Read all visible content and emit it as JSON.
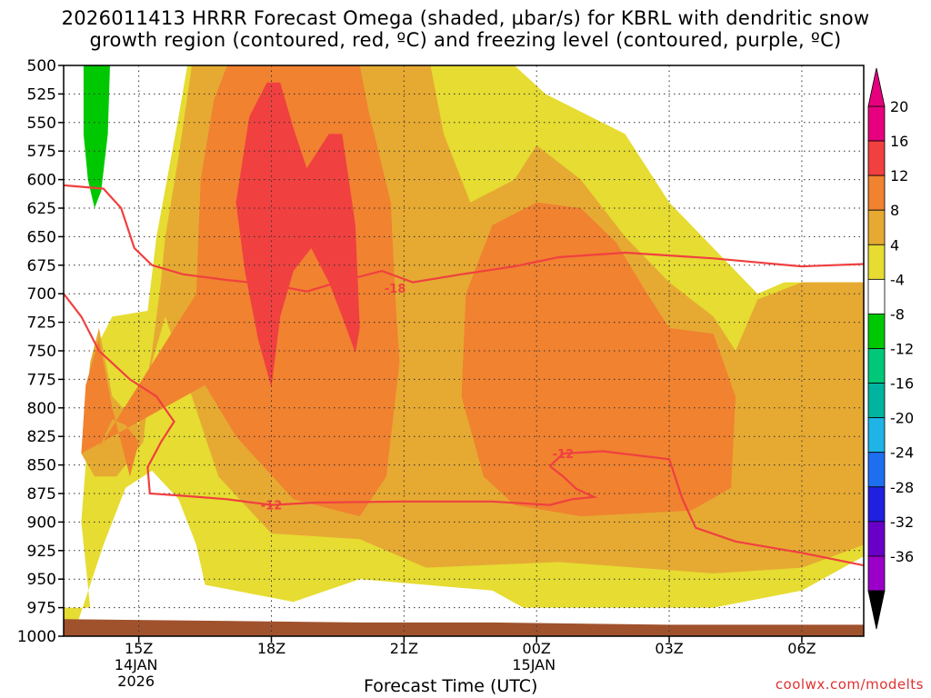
{
  "title_line1": "2026011413 HRRR Forecast Omega (shaded, µbar/s) for KBRL with dendritic snow",
  "title_line2": "growth region (contoured, red, ºC) and freezing level (contoured, purple, ºC)",
  "website": "coolwx.com/modelts",
  "chart_data": {
    "type": "contour-time-height",
    "xlabel": "Forecast Time (UTC)",
    "x_unit": "hours since 2026-01-14 15Z",
    "xlim": [
      -1.7,
      16.4
    ],
    "ylim": [
      500,
      1000
    ],
    "y_ticks": [
      500,
      525,
      550,
      575,
      600,
      625,
      650,
      675,
      700,
      725,
      750,
      775,
      800,
      825,
      850,
      875,
      900,
      925,
      950,
      975,
      1000
    ],
    "x_ticks": [
      {
        "x": 0,
        "label": "15Z",
        "sub1": "14JAN",
        "sub2": "2026"
      },
      {
        "x": 3,
        "label": "18Z",
        "sub1": "",
        "sub2": ""
      },
      {
        "x": 6,
        "label": "21Z",
        "sub1": "",
        "sub2": ""
      },
      {
        "x": 9,
        "label": "00Z",
        "sub1": "15JAN",
        "sub2": ""
      },
      {
        "x": 12,
        "label": "03Z",
        "sub1": "",
        "sub2": ""
      },
      {
        "x": 15,
        "label": "06Z",
        "sub1": "",
        "sub2": ""
      }
    ],
    "colorbar": {
      "levels": [
        -36,
        -32,
        -28,
        -24,
        -20,
        -16,
        -12,
        -8,
        -4,
        4,
        8,
        12,
        16,
        20
      ],
      "label_levels": [
        20,
        16,
        12,
        8,
        4,
        -4,
        -8,
        -12,
        -16,
        -20,
        -24,
        -28,
        -32,
        -36
      ],
      "colors": [
        "#a0a0a0",
        "#9b00c8",
        "#6a00c8",
        "#2020e0",
        "#1e6ff0",
        "#1eb4e6",
        "#00b4a0",
        "#00c878",
        "#00c800",
        "#ffffff",
        "#e6dc32",
        "#e6aa32",
        "#f08230",
        "#f04040",
        "#e6007d",
        "#000000"
      ]
    },
    "shading": [
      {
        "value": 6,
        "color": "#e6dc32",
        "polygon": [
          [
            -1.7,
            975
          ],
          [
            -1.1,
            975
          ],
          [
            -1.3,
            900
          ],
          [
            -1.0,
            750
          ],
          [
            -0.6,
            720
          ],
          [
            0.2,
            715
          ],
          [
            0.4,
            650
          ],
          [
            0.9,
            545
          ],
          [
            1.1,
            500
          ],
          [
            8.5,
            500
          ],
          [
            9.2,
            525
          ],
          [
            11.0,
            560
          ],
          [
            12.0,
            620
          ],
          [
            13.5,
            680
          ],
          [
            14.0,
            700
          ],
          [
            14.6,
            690
          ],
          [
            16.4,
            690
          ],
          [
            16.4,
            930
          ],
          [
            15.0,
            960
          ],
          [
            13.0,
            975
          ],
          [
            8.7,
            975
          ],
          [
            8.0,
            960
          ],
          [
            5.0,
            950
          ],
          [
            3.5,
            970
          ],
          [
            1.5,
            955
          ],
          [
            1.3,
            920
          ],
          [
            0.9,
            880
          ],
          [
            0.3,
            855
          ],
          [
            -0.3,
            870
          ],
          [
            -0.8,
            920
          ],
          [
            -1.4,
            990
          ],
          [
            -1.7,
            990
          ]
        ]
      },
      {
        "value": 10,
        "color": "#e6aa32",
        "polygon": [
          [
            -1.3,
            840
          ],
          [
            -1.1,
            760
          ],
          [
            -0.9,
            730
          ],
          [
            -0.6,
            790
          ],
          [
            0.0,
            815
          ],
          [
            0.3,
            750
          ],
          [
            0.5,
            690
          ],
          [
            0.6,
            650
          ],
          [
            0.9,
            580
          ],
          [
            1.2,
            500
          ],
          [
            6.6,
            500
          ],
          [
            6.9,
            560
          ],
          [
            7.5,
            620
          ],
          [
            8.5,
            600
          ],
          [
            9.0,
            570
          ],
          [
            10.0,
            600
          ],
          [
            11.0,
            650
          ],
          [
            12.0,
            690
          ],
          [
            13.0,
            720
          ],
          [
            13.5,
            750
          ],
          [
            14.0,
            705
          ],
          [
            15.0,
            690
          ],
          [
            16.4,
            690
          ],
          [
            16.4,
            920
          ],
          [
            15.0,
            940
          ],
          [
            13.0,
            945
          ],
          [
            9.5,
            935
          ],
          [
            6.5,
            940
          ],
          [
            5.0,
            915
          ],
          [
            3.0,
            910
          ],
          [
            1.8,
            860
          ],
          [
            1.2,
            790
          ],
          [
            0.6,
            720
          ],
          [
            0.3,
            760
          ],
          [
            0.1,
            830
          ],
          [
            -0.5,
            860
          ],
          [
            -1.0,
            860
          ]
        ]
      },
      {
        "value": 14,
        "color": "#f08230",
        "polygon": [
          [
            -1.3,
            840
          ],
          [
            -1.2,
            780
          ],
          [
            -0.9,
            740
          ],
          [
            -0.6,
            800
          ],
          [
            -0.2,
            860
          ],
          [
            0.0,
            830
          ],
          [
            -0.3,
            815
          ],
          [
            -0.6,
            810
          ],
          [
            -0.9,
            835
          ],
          [
            1.3,
            700
          ],
          [
            1.4,
            600
          ],
          [
            1.7,
            530
          ],
          [
            2.0,
            500
          ],
          [
            5.0,
            500
          ],
          [
            5.2,
            540
          ],
          [
            5.7,
            620
          ],
          [
            5.8,
            700
          ],
          [
            5.9,
            760
          ],
          [
            5.6,
            860
          ],
          [
            5.0,
            895
          ],
          [
            3.5,
            880
          ],
          [
            2.2,
            825
          ],
          [
            1.5,
            780
          ]
        ]
      },
      {
        "value": 14,
        "color": "#f08230",
        "polygon": [
          [
            7.3,
            790
          ],
          [
            7.4,
            700
          ],
          [
            8.0,
            640
          ],
          [
            9.0,
            620
          ],
          [
            10.0,
            625
          ],
          [
            10.8,
            655
          ],
          [
            11.5,
            700
          ],
          [
            12.0,
            730
          ],
          [
            13.0,
            735
          ],
          [
            13.5,
            790
          ],
          [
            13.4,
            870
          ],
          [
            12.5,
            890
          ],
          [
            10.0,
            895
          ],
          [
            8.5,
            885
          ],
          [
            7.8,
            860
          ]
        ]
      },
      {
        "value": 18,
        "color": "#f04040",
        "polygon": [
          [
            2.2,
            620
          ],
          [
            2.5,
            545
          ],
          [
            2.9,
            515
          ],
          [
            3.2,
            515
          ],
          [
            3.5,
            555
          ],
          [
            3.8,
            590
          ],
          [
            4.3,
            560
          ],
          [
            4.6,
            560
          ],
          [
            4.9,
            640
          ],
          [
            5.0,
            730
          ],
          [
            4.9,
            752
          ],
          [
            4.6,
            720
          ],
          [
            4.3,
            690
          ],
          [
            3.9,
            660
          ],
          [
            3.5,
            680
          ],
          [
            3.2,
            720
          ],
          [
            3.0,
            782
          ],
          [
            2.7,
            740
          ],
          [
            2.4,
            680
          ]
        ]
      },
      {
        "value": -6,
        "color": "#00c800",
        "polygon": [
          [
            -1.25,
            500
          ],
          [
            -0.65,
            500
          ],
          [
            -0.7,
            560
          ],
          [
            -0.85,
            610
          ],
          [
            -1.0,
            625
          ],
          [
            -1.15,
            600
          ],
          [
            -1.25,
            560
          ]
        ]
      }
    ],
    "terrain": {
      "color": "#a0522d",
      "polygon": [
        [
          -1.7,
          985
        ],
        [
          5.0,
          988
        ],
        [
          8.0,
          988
        ],
        [
          12.0,
          990
        ],
        [
          16.4,
          990
        ],
        [
          16.4,
          1000
        ],
        [
          -1.7,
          1000
        ]
      ]
    },
    "contours": [
      {
        "value": -18,
        "label": "-18",
        "label_at": [
          5.8,
          695
        ],
        "color": "#f04040",
        "points": [
          [
            -1.7,
            605
          ],
          [
            -0.8,
            608
          ],
          [
            -0.4,
            625
          ],
          [
            -0.1,
            660
          ],
          [
            0.3,
            675
          ],
          [
            1.0,
            683
          ],
          [
            2.0,
            688
          ],
          [
            3.0,
            692
          ],
          [
            3.8,
            698
          ],
          [
            4.5,
            690
          ],
          [
            5.5,
            680
          ],
          [
            6.2,
            690
          ],
          [
            7.3,
            683
          ],
          [
            8.5,
            676
          ],
          [
            9.5,
            668
          ],
          [
            11.0,
            664
          ],
          [
            13.0,
            669
          ],
          [
            15.0,
            676
          ],
          [
            16.4,
            674
          ]
        ]
      },
      {
        "value": -12,
        "label": "-12",
        "label_at": [
          3.0,
          885
        ],
        "color": "#f04040",
        "points": [
          [
            -1.7,
            700
          ],
          [
            -1.3,
            720
          ],
          [
            -0.9,
            750
          ],
          [
            -0.2,
            775
          ],
          [
            0.4,
            790
          ],
          [
            0.8,
            812
          ],
          [
            0.5,
            830
          ],
          [
            0.2,
            852
          ],
          [
            0.25,
            875
          ],
          [
            1.0,
            877
          ],
          [
            2.0,
            880
          ],
          [
            3.0,
            885
          ],
          [
            4.0,
            883
          ],
          [
            6.0,
            882
          ],
          [
            8.0,
            882
          ],
          [
            9.3,
            885
          ],
          [
            9.8,
            880
          ],
          [
            10.3,
            878
          ],
          [
            9.9,
            871
          ],
          [
            9.6,
            860
          ],
          [
            9.3,
            851
          ]
        ]
      },
      {
        "value": -12,
        "label": "-12",
        "label_at": [
          9.6,
          840
        ],
        "color": "#f04040",
        "points": [
          [
            9.3,
            851
          ],
          [
            9.6,
            840
          ],
          [
            10.5,
            838
          ],
          [
            12.0,
            845
          ],
          [
            12.3,
            880
          ],
          [
            12.6,
            905
          ],
          [
            13.5,
            917
          ],
          [
            15.0,
            927
          ],
          [
            16.4,
            938
          ]
        ]
      }
    ]
  }
}
